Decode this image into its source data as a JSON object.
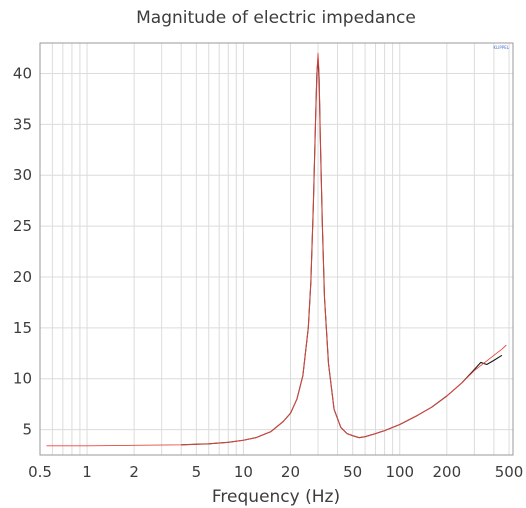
{
  "chart_data": {
    "type": "line",
    "title": "Magnitude of electric impedance",
    "xlabel": "Frequency (Hz)",
    "ylabel": "",
    "xscale": "log",
    "xlim": [
      0.5,
      530
    ],
    "ylim": [
      2.5,
      43
    ],
    "grid": true,
    "legend": "none",
    "badge": "KLIPPEL",
    "x_ticks": [
      {
        "value": 0.5,
        "label": "0.5"
      },
      {
        "value": 1,
        "label": "1"
      },
      {
        "value": 2,
        "label": "2"
      },
      {
        "value": 5,
        "label": "5"
      },
      {
        "value": 10,
        "label": "10"
      },
      {
        "value": 20,
        "label": "20"
      },
      {
        "value": 50,
        "label": "50"
      },
      {
        "value": 100,
        "label": "100"
      },
      {
        "value": 200,
        "label": "200"
      },
      {
        "value": 500,
        "label": "500"
      }
    ],
    "y_ticks": [
      {
        "value": 5,
        "label": "5"
      },
      {
        "value": 10,
        "label": "10"
      },
      {
        "value": 15,
        "label": "15"
      },
      {
        "value": 20,
        "label": "20"
      },
      {
        "value": 25,
        "label": "25"
      },
      {
        "value": 30,
        "label": "30"
      },
      {
        "value": 35,
        "label": "35"
      },
      {
        "value": 40,
        "label": "40"
      }
    ],
    "series": [
      {
        "color": "#1a1a1a",
        "x": [
          4,
          6,
          8,
          10,
          12,
          15,
          18,
          20,
          22,
          24,
          26,
          27,
          28,
          29,
          29.5,
          30,
          30.5,
          31,
          32,
          33,
          35,
          38,
          42,
          46,
          50,
          55,
          60,
          70,
          80,
          100,
          130,
          160,
          200,
          250,
          300,
          330,
          360,
          400,
          450
        ],
        "y": [
          3.5,
          3.6,
          3.75,
          3.95,
          4.2,
          4.8,
          5.8,
          6.6,
          8.0,
          10.3,
          15.0,
          19.5,
          27.0,
          36.0,
          40.0,
          41.5,
          39.5,
          34.0,
          25.0,
          18.0,
          11.5,
          7.0,
          5.2,
          4.6,
          4.4,
          4.2,
          4.3,
          4.6,
          4.9,
          5.5,
          6.4,
          7.2,
          8.3,
          9.6,
          10.9,
          11.6,
          11.4,
          11.8,
          12.3
        ]
      },
      {
        "color": "#e8463c",
        "x": [
          0.55,
          0.7,
          1,
          2,
          4,
          6,
          8,
          10,
          12,
          15,
          18,
          20,
          22,
          24,
          26,
          27,
          28,
          29,
          29.5,
          30,
          30.5,
          31,
          32,
          33,
          35,
          38,
          42,
          46,
          50,
          55,
          60,
          70,
          80,
          100,
          130,
          160,
          200,
          250,
          300,
          350,
          400,
          450,
          480
        ],
        "y": [
          3.4,
          3.4,
          3.4,
          3.45,
          3.5,
          3.6,
          3.75,
          3.95,
          4.2,
          4.8,
          5.8,
          6.6,
          8.0,
          10.3,
          15.0,
          19.5,
          27.0,
          36.0,
          40.0,
          42.0,
          40.0,
          34.0,
          25.0,
          18.0,
          11.5,
          7.0,
          5.2,
          4.6,
          4.4,
          4.2,
          4.3,
          4.6,
          4.9,
          5.5,
          6.4,
          7.2,
          8.3,
          9.6,
          10.8,
          11.6,
          12.3,
          12.9,
          13.3
        ]
      }
    ]
  }
}
